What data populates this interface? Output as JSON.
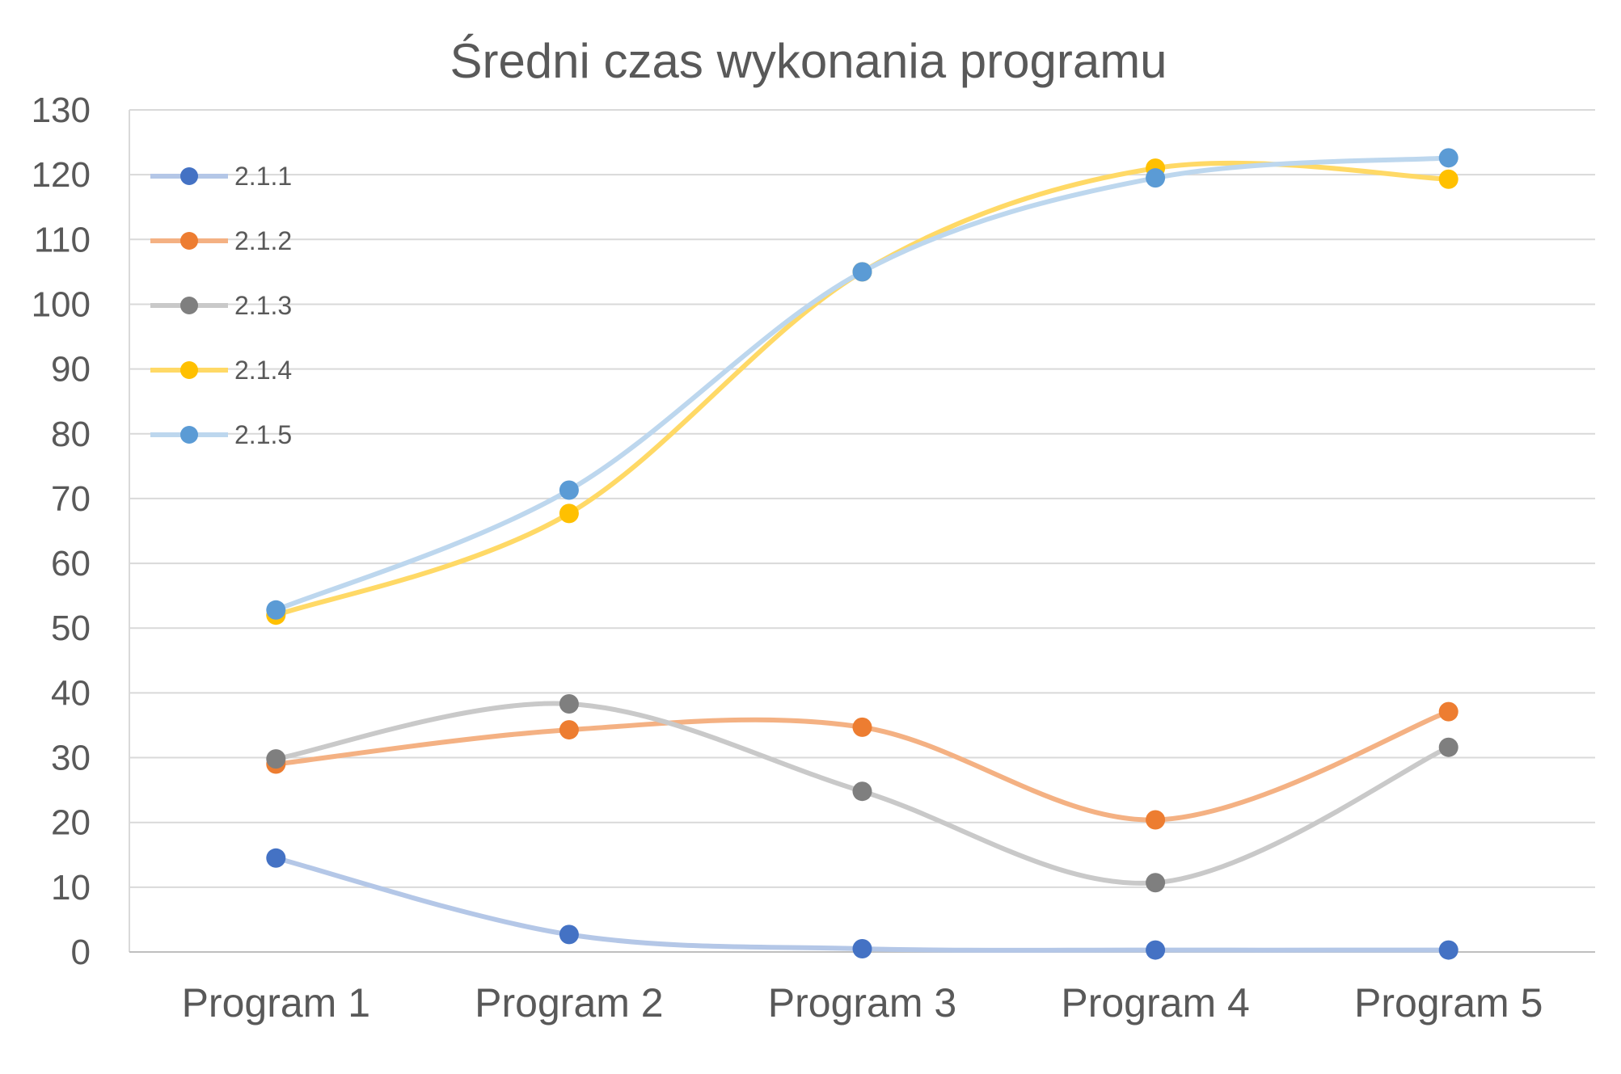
{
  "chart_data": {
    "type": "line",
    "title": "Średni czas wykonania programu",
    "xlabel": "",
    "ylabel": "",
    "categories": [
      "Program 1",
      "Program 2",
      "Program 3",
      "Program 4",
      "Program 5"
    ],
    "y_ticks": [
      "0",
      "10",
      "20",
      "30",
      "40",
      "50",
      "60",
      "70",
      "80",
      "90",
      "100",
      "110",
      "120",
      "130"
    ],
    "ylim": [
      0,
      130
    ],
    "grid": true,
    "smooth": true,
    "legend_position": "top-left (inside plot)",
    "series": [
      {
        "name": "2.1.1",
        "values": [
          14.5,
          2.7,
          0.5,
          0.3,
          0.3
        ],
        "line_color": "#b4c7e7",
        "marker_color": "#4472c4"
      },
      {
        "name": "2.1.2",
        "values": [
          29.0,
          34.3,
          34.7,
          20.4,
          37.1
        ],
        "line_color": "#f4b183",
        "marker_color": "#ed7d31"
      },
      {
        "name": "2.1.3",
        "values": [
          29.8,
          38.3,
          24.8,
          10.7,
          31.6
        ],
        "line_color": "#c9c9c9",
        "marker_color": "#7f7f7f"
      },
      {
        "name": "2.1.4",
        "values": [
          52.0,
          67.7,
          105.0,
          121.0,
          119.3
        ],
        "line_color": "#ffd966",
        "marker_color": "#ffc000"
      },
      {
        "name": "2.1.5",
        "values": [
          52.8,
          71.3,
          105.0,
          119.5,
          122.6
        ],
        "line_color": "#bdd7ee",
        "marker_color": "#5b9bd5"
      }
    ]
  }
}
